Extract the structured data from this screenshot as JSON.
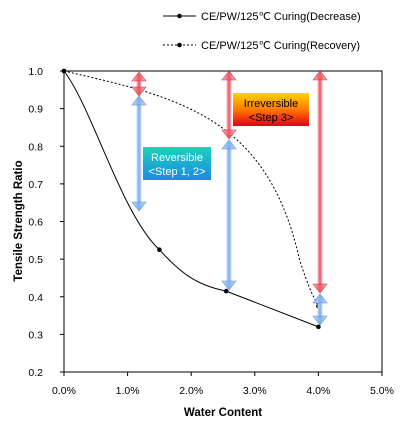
{
  "chart_data": {
    "type": "line",
    "xlabel": "Water Content",
    "ylabel": "Tensile Strength Ratio",
    "xlim": [
      0,
      5
    ],
    "ylim": [
      0.2,
      1.0
    ],
    "x_tick_labels": [
      "0.0%",
      "1.0%",
      "2.0%",
      "3.0%",
      "4.0%",
      "5.0%"
    ],
    "y_tick_labels": [
      "1.0",
      "0.9",
      "0.8",
      "0.7",
      "0.6",
      "0.5",
      "0.4",
      "0.3",
      "0.2"
    ],
    "legend_position": "top",
    "series": [
      {
        "name": "CE/PW/125℃ Curing(Decrease)",
        "line_style": "solid",
        "color": "#000000",
        "points": [
          [
            0.0,
            1.0
          ],
          [
            1.5,
            0.525
          ],
          [
            2.55,
            0.415
          ],
          [
            4.0,
            0.32
          ]
        ]
      },
      {
        "name": "CE/PW/125℃ Curing(Recovery)",
        "line_style": "dashed",
        "color": "#000000",
        "points": [
          [
            0.0,
            1.0
          ],
          [
            4.0,
            0.375
          ]
        ]
      }
    ],
    "annotations": [
      {
        "label_lines": [
          "Reversible",
          "<Step 1, 2>"
        ],
        "color": "#00bcd4",
        "arrow_color": "#7fb3e8"
      },
      {
        "label_lines": [
          "Irreversible",
          "<Step 3>"
        ],
        "color": "#ff3300",
        "arrow_color": "#ef5a6a"
      }
    ]
  }
}
